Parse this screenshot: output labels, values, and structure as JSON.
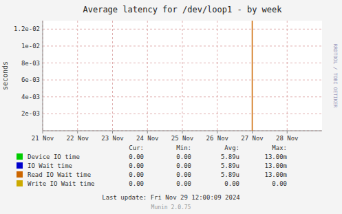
{
  "chart_data": {
    "type": "bar",
    "title": "Average latency for /dev/loop1 - by week",
    "y_label": "seconds",
    "x": [
      1732579200
    ],
    "values": [
      0.013
    ],
    "color": "#cc6600",
    "xlim": [
      1732060800,
      1732752000
    ],
    "xticks": [
      {
        "value": 1732060800,
        "label": "21 Nov"
      },
      {
        "value": 1732147200,
        "label": "22 Nov"
      },
      {
        "value": 1732233600,
        "label": "23 Nov"
      },
      {
        "value": 1732320000,
        "label": "24 Nov"
      },
      {
        "value": 1732406400,
        "label": "25 Nov"
      },
      {
        "value": 1732492800,
        "label": "26 Nov"
      },
      {
        "value": 1732579200,
        "label": "27 Nov"
      },
      {
        "value": 1732665600,
        "label": "28 Nov"
      }
    ],
    "ylim": [
      0,
      0.013
    ],
    "yticks": [
      {
        "value": 0,
        "label": ""
      },
      {
        "value": 0.002,
        "label": "2e-03"
      },
      {
        "value": 0.004,
        "label": "4e-03"
      },
      {
        "value": 0.006,
        "label": "6e-03"
      },
      {
        "value": 0.008,
        "label": "8e-03"
      },
      {
        "value": 0.01,
        "label": "1e-02"
      },
      {
        "value": 0.012,
        "label": "1.2e-02"
      }
    ],
    "grid": true,
    "legend_table": {
      "headers": [
        "Cur:",
        "Min:",
        "Avg:",
        "Max:"
      ],
      "rows": [
        {
          "name": "Device IO time",
          "color": "#00cc00",
          "values": [
            "0.00",
            "0.00",
            "5.89u",
            "13.00m"
          ]
        },
        {
          "name": "IO Wait time",
          "color": "#0000cc",
          "values": [
            "0.00",
            "0.00",
            "5.89u",
            "13.00m"
          ]
        },
        {
          "name": "Read IO Wait time",
          "color": "#cc6600",
          "values": [
            "0.00",
            "0.00",
            "5.89u",
            "13.00m"
          ]
        },
        {
          "name": "Write IO Wait time",
          "color": "#ccaa00",
          "values": [
            "0.00",
            "0.00",
            "0.00",
            "0.00"
          ]
        }
      ]
    },
    "annotations": [
      "Last update: Fri Nov 29 12:00:09 2024",
      "Munin 2.0.75",
      "RRDTOOL / TOBI OETIKER"
    ]
  }
}
